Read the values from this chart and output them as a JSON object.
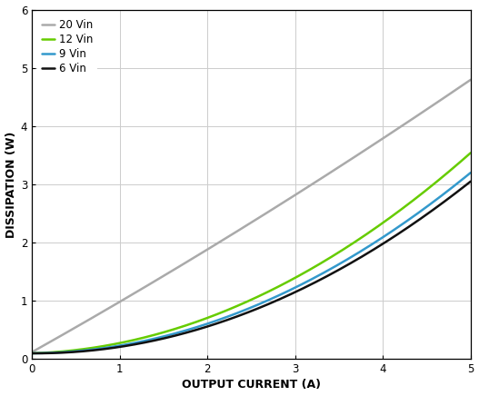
{
  "xlabel": "OUTPUT CURRENT (A)",
  "ylabel": "DISSIPATION (W)",
  "xlim": [
    0,
    5
  ],
  "ylim": [
    0,
    6
  ],
  "xticks": [
    0,
    1,
    2,
    3,
    4,
    5
  ],
  "yticks": [
    0,
    1,
    2,
    3,
    4,
    5,
    6
  ],
  "series": [
    {
      "label": "20 Vin",
      "color": "#aaaaaa",
      "params": [
        0.845,
        0.018,
        0.12
      ]
    },
    {
      "label": "12 Vin",
      "color": "#66cc00",
      "params": [
        0.048,
        0.128,
        0.1
      ]
    },
    {
      "label": "9 Vin",
      "color": "#3399cc",
      "params": [
        0.01,
        0.122,
        0.1
      ]
    },
    {
      "label": "6 Vin",
      "color": "#111111",
      "params": [
        -0.01,
        0.12,
        0.1
      ]
    }
  ],
  "grid_color": "#cccccc",
  "background_color": "#ffffff",
  "legend_fontsize": 8.5,
  "axis_label_fontsize": 9,
  "tick_fontsize": 8.5,
  "linewidth": 1.8
}
